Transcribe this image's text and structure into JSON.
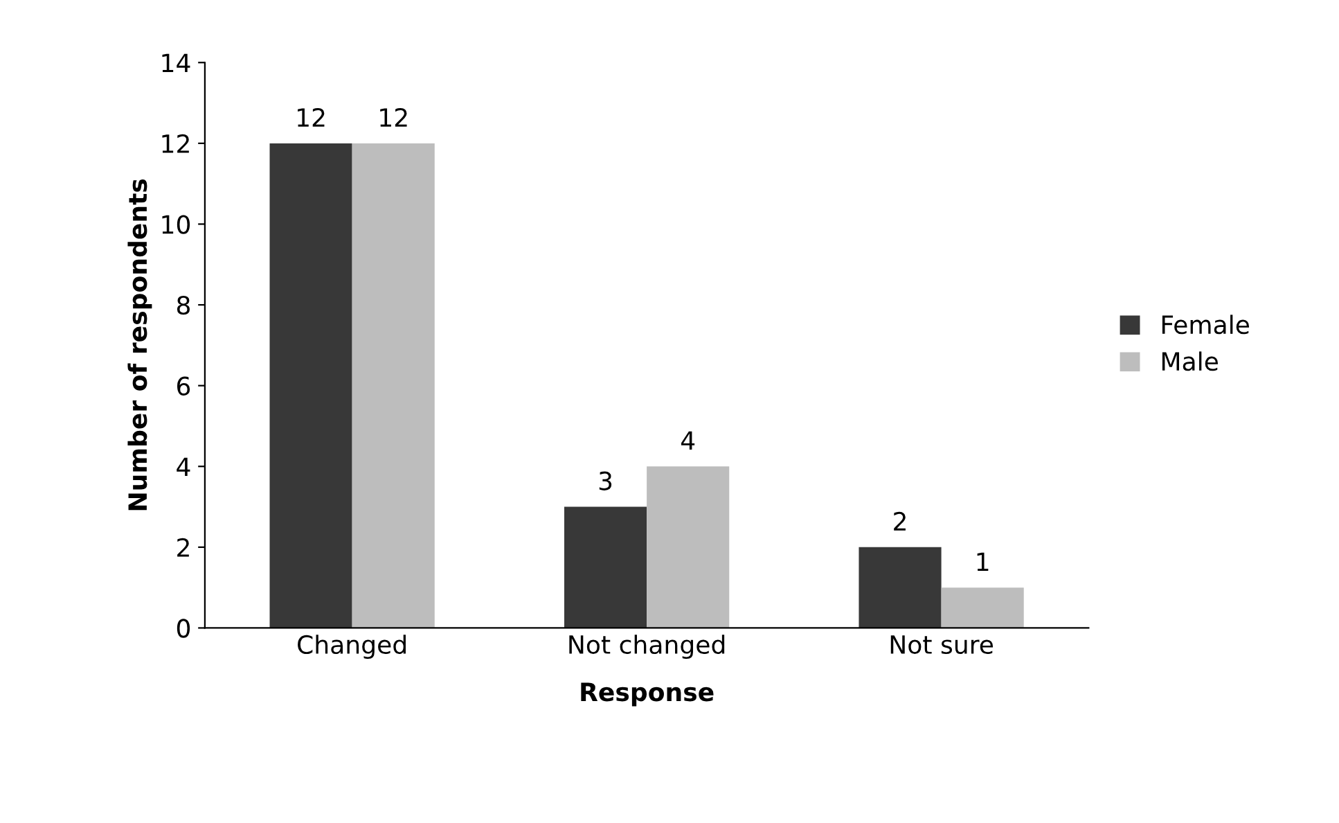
{
  "chart_data": {
    "type": "bar",
    "xlabel": "Response",
    "ylabel": "Number of respondents",
    "categories": [
      "Changed",
      "Not changed",
      "Not sure"
    ],
    "series": [
      {
        "name": "Female",
        "color": "#383838",
        "values": [
          12,
          3,
          2
        ]
      },
      {
        "name": "Male",
        "color": "#bdbdbd",
        "values": [
          12,
          4,
          1
        ]
      }
    ],
    "ylim": [
      0,
      14
    ],
    "yticks": [
      0,
      2,
      4,
      6,
      8,
      10,
      12,
      14
    ],
    "grid": false,
    "legend": "right",
    "data_labels": true
  }
}
